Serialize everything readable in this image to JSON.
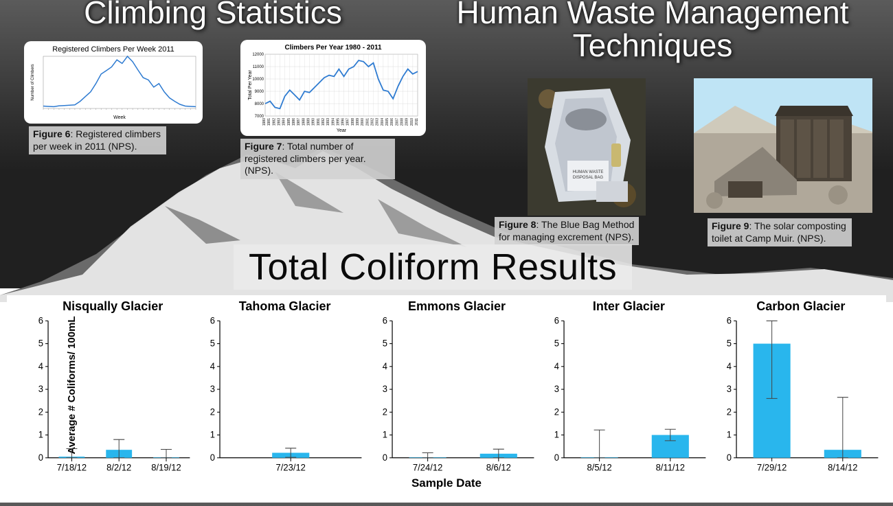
{
  "titles": {
    "left": "Climbing Statistics",
    "right": "Human Waste Management\nTechniques",
    "section": "Total Coliform Results"
  },
  "line_chart_6": {
    "title": "Registered Climbers Per Week 2011",
    "xlabel": "Week",
    "ylabel": "Number of Climbers",
    "color": "#2e7bd1",
    "stroke_width": 1.5,
    "background": "#ffffff",
    "grid_color": "#e0e0e0",
    "values": [
      40,
      35,
      30,
      45,
      50,
      55,
      60,
      120,
      200,
      280,
      420,
      580,
      640,
      700,
      820,
      760,
      880,
      790,
      650,
      520,
      480,
      360,
      420,
      280,
      180,
      120,
      70,
      40,
      35,
      30
    ]
  },
  "line_chart_7": {
    "title": "Climbers Per Year 1980 - 2011",
    "xlabel": "Year",
    "ylabel": "Total Per Year",
    "color": "#2e7bd1",
    "stroke_width": 1.8,
    "background": "#ffffff",
    "grid_color": "#d0d0d0",
    "ymin": 7000,
    "ymax": 12000,
    "years": [
      1980,
      1981,
      1982,
      1983,
      1984,
      1985,
      1986,
      1987,
      1988,
      1989,
      1990,
      1991,
      1992,
      1993,
      1994,
      1995,
      1996,
      1997,
      1998,
      1999,
      2000,
      2001,
      2002,
      2003,
      2004,
      2005,
      2006,
      2007,
      2008,
      2009,
      2010,
      2011
    ],
    "values": [
      8000,
      8200,
      7700,
      7600,
      8600,
      9100,
      8700,
      8300,
      9000,
      8900,
      9300,
      9700,
      10100,
      10300,
      10200,
      10800,
      10200,
      10800,
      11000,
      11500,
      11400,
      11000,
      11300,
      10000,
      9100,
      9000,
      8400,
      9400,
      10200,
      10800,
      10400,
      10600
    ]
  },
  "captions": {
    "fig6": {
      "bold": "Figure 6",
      "rest": ": Registered climbers per week in 2011 (NPS)."
    },
    "fig7": {
      "bold": "Figure 7",
      "rest": ": Total number of registered climbers per year. (NPS)."
    },
    "fig8": {
      "bold": "Figure 8",
      "rest": ": The Blue Bag Method for managing excrement (NPS)."
    },
    "fig9": {
      "bold": "Figure 9",
      "rest": ": The solar composting toilet at Camp Muir. (NPS)."
    }
  },
  "photo8_label": "HUMAN WASTE\nDISPOSAL BAG",
  "results": {
    "ylabel": "Average # Coliforms/ 100mL",
    "xlabel": "Sample Date",
    "ymax": 6,
    "ytick_step": 1,
    "bar_color": "#29b6ed",
    "error_color": "#444444",
    "axis_color": "#000000",
    "tick_fontsize": 13,
    "title_fontsize": 18,
    "charts": [
      {
        "title": "Nisqually Glacier",
        "dates": [
          "7/18/12",
          "8/2/12",
          "8/19/12"
        ],
        "values": [
          0.05,
          0.35,
          0.02
        ],
        "err": [
          0.35,
          0.45,
          0.35
        ]
      },
      {
        "title": "Tahoma Glacier",
        "dates": [
          "7/23/12"
        ],
        "values": [
          0.22
        ],
        "err": [
          0.2
        ]
      },
      {
        "title": "Emmons Glacier",
        "dates": [
          "7/24/12",
          "8/6/12"
        ],
        "values": [
          0.02,
          0.18
        ],
        "err": [
          0.2,
          0.2
        ]
      },
      {
        "title": "Inter Glacier",
        "dates": [
          "8/5/12",
          "8/11/12"
        ],
        "values": [
          0.02,
          1.0
        ],
        "err": [
          1.2,
          0.25
        ]
      },
      {
        "title": "Carbon Glacier",
        "dates": [
          "7/29/12",
          "8/14/12"
        ],
        "values": [
          5.0,
          0.35
        ],
        "err": [
          2.4,
          2.3
        ]
      }
    ]
  }
}
